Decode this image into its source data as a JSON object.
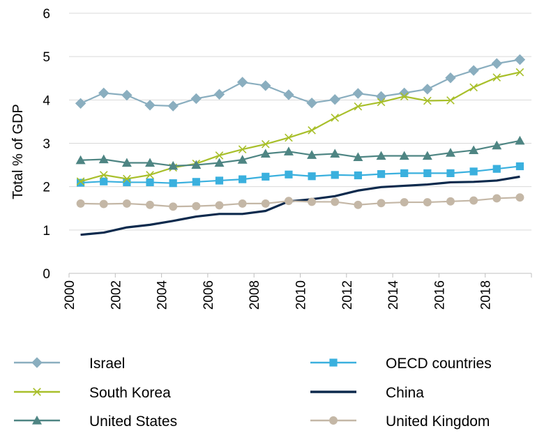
{
  "chart_data": {
    "type": "line",
    "title": "",
    "xlabel": "",
    "ylabel": "Total % of GDP",
    "xlim": [
      2000,
      2020
    ],
    "ylim": [
      0,
      6
    ],
    "yticks": [
      "0",
      "1",
      "2",
      "3",
      "4",
      "5",
      "6"
    ],
    "xticks": [
      "2000",
      "2002",
      "2004",
      "2006",
      "2008",
      "2010",
      "2012",
      "2014",
      "2016",
      "2018"
    ],
    "grid": "horizontal",
    "legend_position": "bottom",
    "x": [
      2000.5,
      2001.5,
      2002.5,
      2003.5,
      2004.5,
      2005.5,
      2006.5,
      2007.5,
      2008.5,
      2009.5,
      2010.5,
      2011.5,
      2012.5,
      2013.5,
      2014.5,
      2015.5,
      2016.5,
      2017.5,
      2018.5,
      2019.5
    ],
    "series": [
      {
        "name": "Israel",
        "color": "#8aaebf",
        "marker": "diamond",
        "values": [
          3.92,
          4.16,
          4.11,
          3.88,
          3.86,
          4.03,
          4.13,
          4.41,
          4.33,
          4.12,
          3.93,
          4.01,
          4.15,
          4.08,
          4.16,
          4.25,
          4.51,
          4.68,
          4.84,
          4.93
        ]
      },
      {
        "name": "OECD countries",
        "color": "#3ab0de",
        "marker": "square",
        "values": [
          2.09,
          2.12,
          2.1,
          2.1,
          2.08,
          2.11,
          2.14,
          2.17,
          2.23,
          2.28,
          2.24,
          2.27,
          2.26,
          2.29,
          2.31,
          2.31,
          2.31,
          2.35,
          2.41,
          2.47
        ]
      },
      {
        "name": "South Korea",
        "color": "#a8bf2a",
        "marker": "x",
        "values": [
          2.12,
          2.27,
          2.18,
          2.27,
          2.44,
          2.53,
          2.72,
          2.86,
          2.98,
          3.13,
          3.3,
          3.59,
          3.85,
          3.95,
          4.08,
          3.98,
          3.99,
          4.29,
          4.52,
          4.64
        ]
      },
      {
        "name": "China",
        "color": "#0d2a4d",
        "marker": "none",
        "values": [
          0.89,
          0.94,
          1.06,
          1.12,
          1.21,
          1.31,
          1.37,
          1.37,
          1.44,
          1.66,
          1.71,
          1.78,
          1.91,
          1.99,
          2.02,
          2.05,
          2.1,
          2.11,
          2.14,
          2.23
        ]
      },
      {
        "name": "United States",
        "color": "#4e8583",
        "marker": "triangle",
        "values": [
          2.61,
          2.63,
          2.55,
          2.55,
          2.48,
          2.5,
          2.55,
          2.62,
          2.76,
          2.81,
          2.73,
          2.76,
          2.68,
          2.71,
          2.71,
          2.71,
          2.78,
          2.84,
          2.95,
          3.06
        ]
      },
      {
        "name": "United Kingdom",
        "color": "#c4b7a6",
        "marker": "circle",
        "values": [
          1.61,
          1.6,
          1.61,
          1.58,
          1.54,
          1.55,
          1.57,
          1.61,
          1.61,
          1.67,
          1.65,
          1.65,
          1.58,
          1.62,
          1.64,
          1.64,
          1.66,
          1.68,
          1.73,
          1.75
        ]
      }
    ]
  }
}
